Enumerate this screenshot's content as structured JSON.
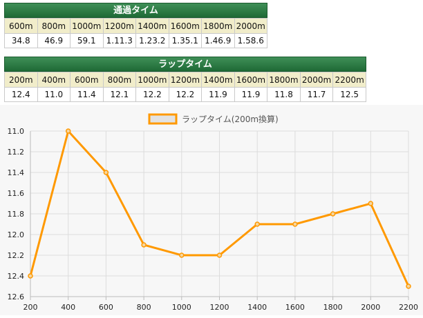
{
  "passing_times": {
    "title": "通過タイム",
    "headers": [
      "600m",
      "800m",
      "1000m",
      "1200m",
      "1400m",
      "1600m",
      "1800m",
      "2000m"
    ],
    "values": [
      "34.8",
      "46.9",
      "59.1",
      "1.11.3",
      "1.23.2",
      "1.35.1",
      "1.46.9",
      "1.58.6"
    ]
  },
  "lap_times": {
    "title": "ラップタイム",
    "headers": [
      "200m",
      "400m",
      "600m",
      "800m",
      "1000m",
      "1200m",
      "1400m",
      "1600m",
      "1800m",
      "2000m",
      "2200m"
    ],
    "values": [
      "12.4",
      "11.0",
      "11.4",
      "12.1",
      "12.2",
      "12.2",
      "11.9",
      "11.9",
      "11.8",
      "11.7",
      "12.5"
    ]
  },
  "chart_data": {
    "type": "line",
    "title": "",
    "xlabel": "",
    "ylabel": "",
    "legend_position": "top-center",
    "y_reversed": true,
    "ylim": [
      11.0,
      12.6
    ],
    "yticks": [
      "11.0",
      "11.2",
      "11.4",
      "11.6",
      "11.8",
      "12.0",
      "12.2",
      "12.4",
      "12.6"
    ],
    "x": [
      200,
      400,
      600,
      800,
      1000,
      1200,
      1400,
      1600,
      1800,
      2000,
      2200
    ],
    "series": [
      {
        "name": "ラップタイム(200m換算)",
        "color": "#ff9900",
        "values": [
          12.4,
          11.0,
          11.4,
          12.1,
          12.2,
          12.2,
          11.9,
          11.9,
          11.8,
          11.7,
          12.5
        ]
      }
    ],
    "grid": true
  }
}
